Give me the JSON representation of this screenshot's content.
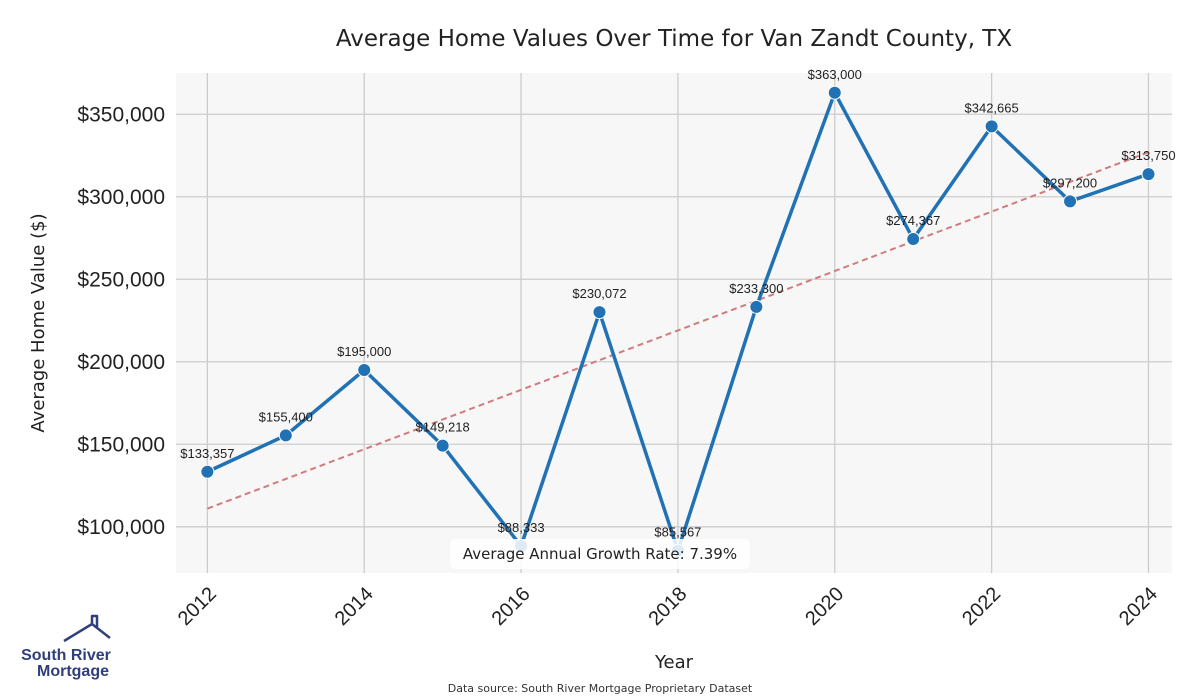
{
  "chart_data": {
    "type": "line",
    "title": "Average Home Values Over Time for Van Zandt County, TX",
    "xlabel": "Year",
    "ylabel": "Average Home Value ($)",
    "x": [
      2012,
      2013,
      2014,
      2015,
      2016,
      2017,
      2018,
      2019,
      2020,
      2021,
      2022,
      2023,
      2024
    ],
    "x_ticks": [
      "2012",
      "2014",
      "2016",
      "2018",
      "2020",
      "2022",
      "2024"
    ],
    "y_ticks": [
      "$100,000",
      "$150,000",
      "$200,000",
      "$250,000",
      "$300,000",
      "$350,000"
    ],
    "xlim": [
      2011.6,
      2024.3
    ],
    "ylim": [
      72000,
      375000
    ],
    "series": [
      {
        "values": [
          133357,
          155400,
          195000,
          149218,
          88333,
          230072,
          85567,
          233300,
          363000,
          274367,
          342665,
          297200,
          313750
        ],
        "labels": [
          "$133,357",
          "$155,400",
          "$195,000",
          "$149,218",
          "$88,333",
          "$230,072",
          "$85,567",
          "$233,300",
          "$363,000",
          "$274,367",
          "$342,665",
          "$297,200",
          "$313,750"
        ],
        "color": "#2171b5"
      }
    ],
    "trendline": {
      "start": [
        2012,
        111000
      ],
      "end": [
        2024,
        327000
      ],
      "color": "#d27b7b",
      "style": "dashed"
    },
    "annotation": "Average Annual Growth Rate: 7.39%",
    "grid": true,
    "background": "#f7f7f7",
    "grid_color": "#cccccc"
  },
  "footer": {
    "source": "Data source: South River Mortgage Proprietary Dataset"
  },
  "logo": {
    "line1": "South River",
    "line2": "Mortgage",
    "color": "#2f3f7a",
    "icon": "house-outline-icon"
  }
}
